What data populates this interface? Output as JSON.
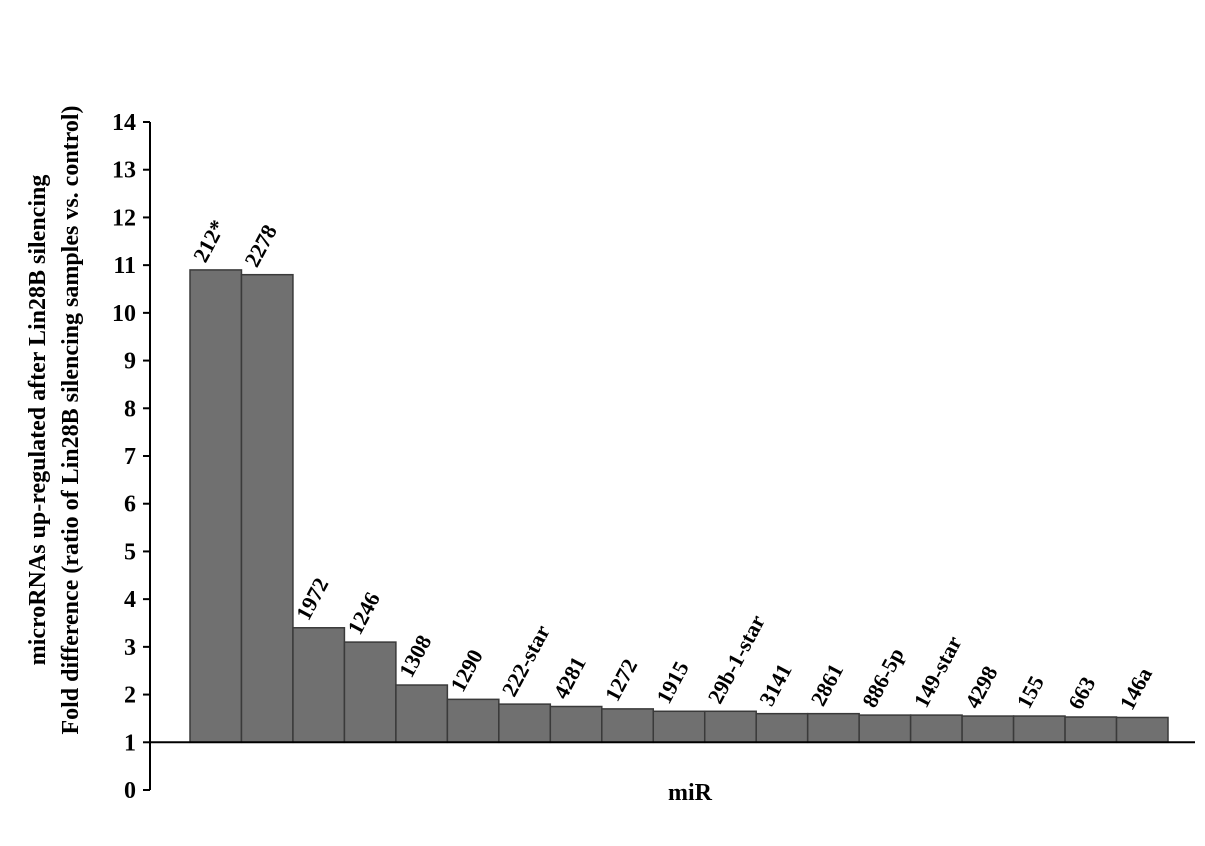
{
  "chart_data": {
    "type": "bar",
    "ylabel": [
      "microRNAs up-regulated after Lin28B silencing",
      "Fold difference (ratio of Lin28B silencing samples vs. control)"
    ],
    "xlabel": "miR",
    "categories": [
      "212*",
      "2278",
      "1972",
      "1246",
      "1308",
      "1290",
      "222-star",
      "4281",
      "1272",
      "1915",
      "29b-1-star",
      "3141",
      "2861",
      "886-5p",
      "149-star",
      "4298",
      "155",
      "663",
      "146a"
    ],
    "values": [
      10.9,
      10.8,
      3.4,
      3.1,
      2.2,
      1.9,
      1.8,
      1.75,
      1.7,
      1.65,
      1.65,
      1.6,
      1.6,
      1.57,
      1.57,
      1.55,
      1.55,
      1.53,
      1.52
    ],
    "color": "#707070",
    "baseline": 1,
    "ylim": [
      0,
      14
    ],
    "yticks": [
      0,
      1,
      2,
      3,
      4,
      5,
      6,
      7,
      8,
      9,
      10,
      11,
      12,
      13,
      14
    ]
  }
}
